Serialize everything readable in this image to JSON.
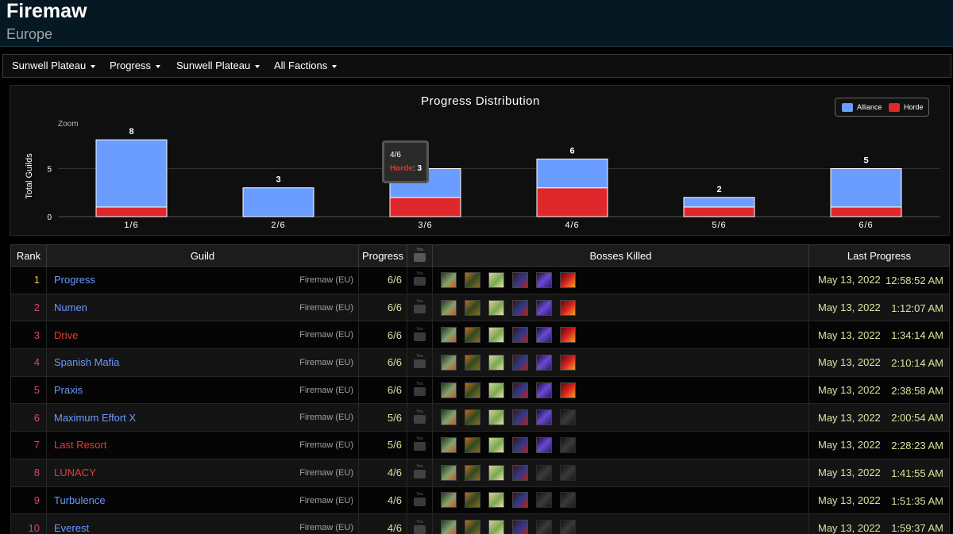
{
  "header": {
    "title": "Firemaw",
    "subtitle": "Europe"
  },
  "nav": {
    "raid": "Sunwell Plateau",
    "mode": "Progress",
    "zone": "Sunwell Plateau",
    "faction": "All Factions"
  },
  "chart": {
    "zoom_label": "Zoom",
    "tooltip": {
      "category": "4/6",
      "series": "Horde",
      "value": "3"
    }
  },
  "chart_data": {
    "type": "bar",
    "stacked": true,
    "title": "Progress Distribution",
    "ylabel": "Total Guilds",
    "xlabel": "",
    "categories": [
      "1/6",
      "2/6",
      "3/6",
      "4/6",
      "5/6",
      "6/6"
    ],
    "series": [
      {
        "name": "Alliance",
        "color": "#6b9cff",
        "values": [
          7,
          3,
          3,
          3,
          1,
          4
        ]
      },
      {
        "name": "Horde",
        "color": "#e0282c",
        "values": [
          1,
          0,
          2,
          3,
          1,
          1
        ]
      }
    ],
    "totals": [
      8,
      3,
      5,
      6,
      2,
      5
    ],
    "yticks": [
      0,
      5
    ],
    "ylim": [
      0,
      9
    ],
    "legend_position": "top-right",
    "grid": true
  },
  "table": {
    "headers": {
      "rank": "Rank",
      "guild": "Guild",
      "progress": "Progress",
      "bosses": "Bosses Killed",
      "last": "Last Progress"
    },
    "rows": [
      {
        "rank": "1",
        "guild": "Progress",
        "faction": "alliance",
        "realm": "Firemaw (EU)",
        "progress": "6/6",
        "kills": 6,
        "date": "May 13, 2022",
        "time": "12:58:52 AM"
      },
      {
        "rank": "2",
        "guild": "Numen",
        "faction": "alliance",
        "realm": "Firemaw (EU)",
        "progress": "6/6",
        "kills": 6,
        "date": "May 13, 2022",
        "time": "1:12:07 AM"
      },
      {
        "rank": "3",
        "guild": "Drive",
        "faction": "horde",
        "realm": "Firemaw (EU)",
        "progress": "6/6",
        "kills": 6,
        "date": "May 13, 2022",
        "time": "1:34:14 AM"
      },
      {
        "rank": "4",
        "guild": "Spanish Mafia",
        "faction": "alliance",
        "realm": "Firemaw (EU)",
        "progress": "6/6",
        "kills": 6,
        "date": "May 13, 2022",
        "time": "2:10:14 AM"
      },
      {
        "rank": "5",
        "guild": "Praxis",
        "faction": "alliance",
        "realm": "Firemaw (EU)",
        "progress": "6/6",
        "kills": 6,
        "date": "May 13, 2022",
        "time": "2:38:58 AM"
      },
      {
        "rank": "6",
        "guild": "Maximum Effort X",
        "faction": "alliance",
        "realm": "Firemaw (EU)",
        "progress": "5/6",
        "kills": 5,
        "date": "May 13, 2022",
        "time": "2:00:54 AM"
      },
      {
        "rank": "7",
        "guild": "Last Resort",
        "faction": "horde",
        "realm": "Firemaw (EU)",
        "progress": "5/6",
        "kills": 5,
        "date": "May 13, 2022",
        "time": "2:28:23 AM"
      },
      {
        "rank": "8",
        "guild": "LUNACY",
        "faction": "horde",
        "realm": "Firemaw (EU)",
        "progress": "4/6",
        "kills": 4,
        "date": "May 13, 2022",
        "time": "1:41:55 AM"
      },
      {
        "rank": "9",
        "guild": "Turbulence",
        "faction": "alliance",
        "realm": "Firemaw (EU)",
        "progress": "4/6",
        "kills": 4,
        "date": "May 13, 2022",
        "time": "1:51:35 AM"
      },
      {
        "rank": "10",
        "guild": "Everest",
        "faction": "alliance",
        "realm": "Firemaw (EU)",
        "progress": "4/6",
        "kills": 4,
        "date": "May 13, 2022",
        "time": "1:59:37 AM"
      }
    ]
  },
  "icons": {
    "youtube": "youtube-icon",
    "boss": "boss-portrait-icon",
    "caret": "chevron-down-icon"
  }
}
